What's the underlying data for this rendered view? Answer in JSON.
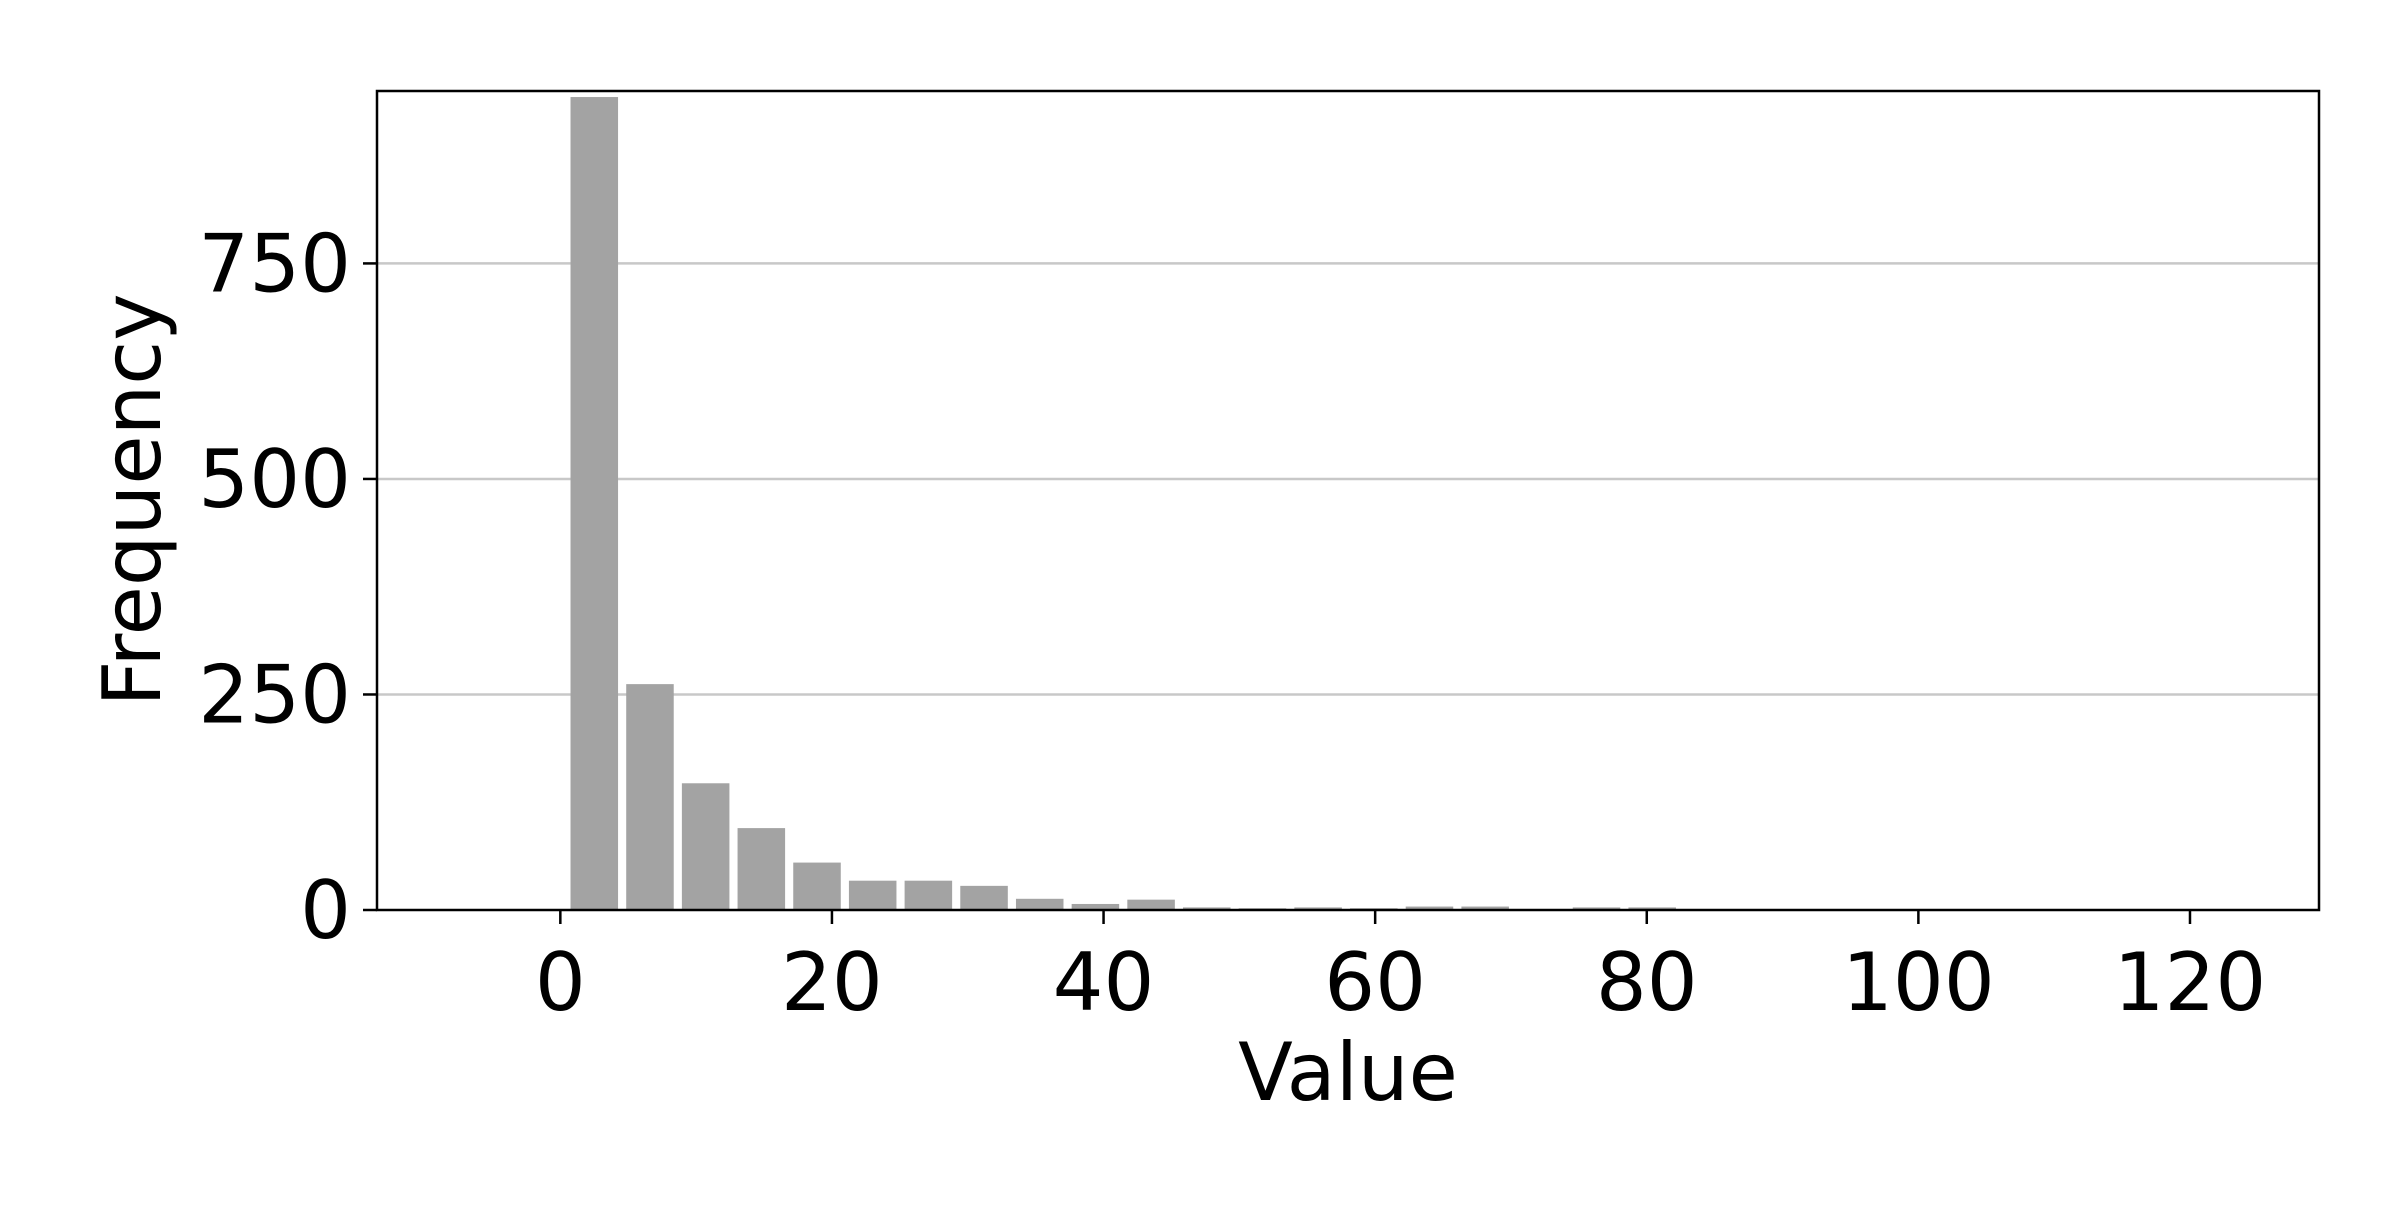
{
  "chart_data": {
    "type": "bar",
    "title": "",
    "xlabel": "Value",
    "ylabel": "Frequency",
    "xlim": [
      -13.5,
      129.5
    ],
    "ylim": [
      0,
      950
    ],
    "xticks": [
      0,
      20,
      40,
      60,
      80,
      100,
      120
    ],
    "xtick_labels": [
      "0",
      "20",
      "40",
      "60",
      "80",
      "100",
      "120"
    ],
    "yticks": [
      0,
      250,
      500,
      750
    ],
    "ytick_labels": [
      "0",
      "250",
      "500",
      "750"
    ],
    "grid": "y",
    "bin_width": 4.1,
    "bar_width": 3.5,
    "bin_centers": [
      2.5,
      6.6,
      10.7,
      14.8,
      18.9,
      23.0,
      27.1,
      31.2,
      35.3,
      39.4,
      43.5,
      47.6,
      51.7,
      55.8,
      59.9,
      64.0,
      68.1,
      72.2,
      76.3,
      80.4,
      84.5,
      88.6,
      92.7,
      96.8,
      100.9,
      105.0,
      109.1,
      113.2,
      117.3,
      121.4
    ],
    "values": [
      943,
      262,
      147,
      95,
      55,
      34,
      34,
      28,
      13,
      7,
      12,
      3,
      2,
      3,
      2,
      4,
      4,
      0,
      3,
      3,
      0,
      1,
      1,
      0,
      0,
      0,
      0,
      0,
      0,
      0
    ],
    "colors": {
      "bar": "#a3a3a3",
      "grid": "#c8c8c8",
      "axis": "#000000",
      "background": "#ffffff"
    }
  }
}
